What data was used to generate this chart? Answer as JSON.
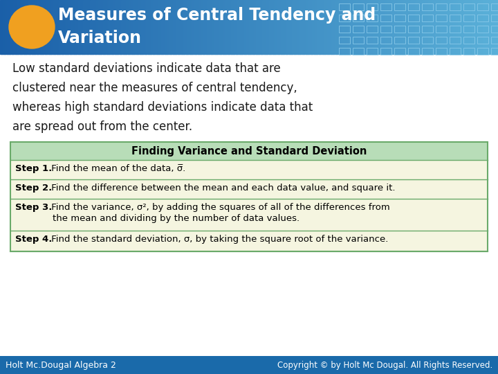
{
  "title_line1": "Measures of Central Tendency and",
  "title_line2": "Variation",
  "title_text_color": "#ffffff",
  "ellipse_color": "#f0a020",
  "body_text_line1": "Low standard deviations indicate data that are",
  "body_text_line2": "clustered near the measures of central tendency,",
  "body_text_line3": "whereas high standard deviations indicate data that",
  "body_text_line4": "are spread out from the center.",
  "body_text_color": "#1a1a1a",
  "table_header_text": "Finding Variance and Standard Deviation",
  "table_header_bg": "#b8ddb8",
  "table_header_text_color": "#000000",
  "table_border_color": "#6aaa6a",
  "table_row_bg": "#f5f5e0",
  "table_rows": [
    {
      "bold": "Step 1.",
      "text": " Find the mean of the data, σ̅.",
      "lines": 1
    },
    {
      "bold": "Step 2.",
      "text": " Find the difference between the mean and each data value, and square it.",
      "lines": 1
    },
    {
      "bold": "Step 3.",
      "text": " Find the variance, σ², by adding the squares of all of the differences from",
      "text2": "the mean and dividing by the number of data values.",
      "lines": 2
    },
    {
      "bold": "Step 4.",
      "text": " Find the standard deviation, σ, by taking the square root of the variance.",
      "lines": 1
    }
  ],
  "footer_bg_color": "#1a6aaa",
  "footer_left_text": "Holt Mc.Dougal Algebra 2",
  "footer_right_text": "Copyright © by Holt Mc Dougal. All Rights Reserved.",
  "footer_text_color": "#ffffff",
  "bg_color": "#ffffff",
  "header_color_left": "#1a5fa8",
  "header_color_right": "#5ab0d8"
}
